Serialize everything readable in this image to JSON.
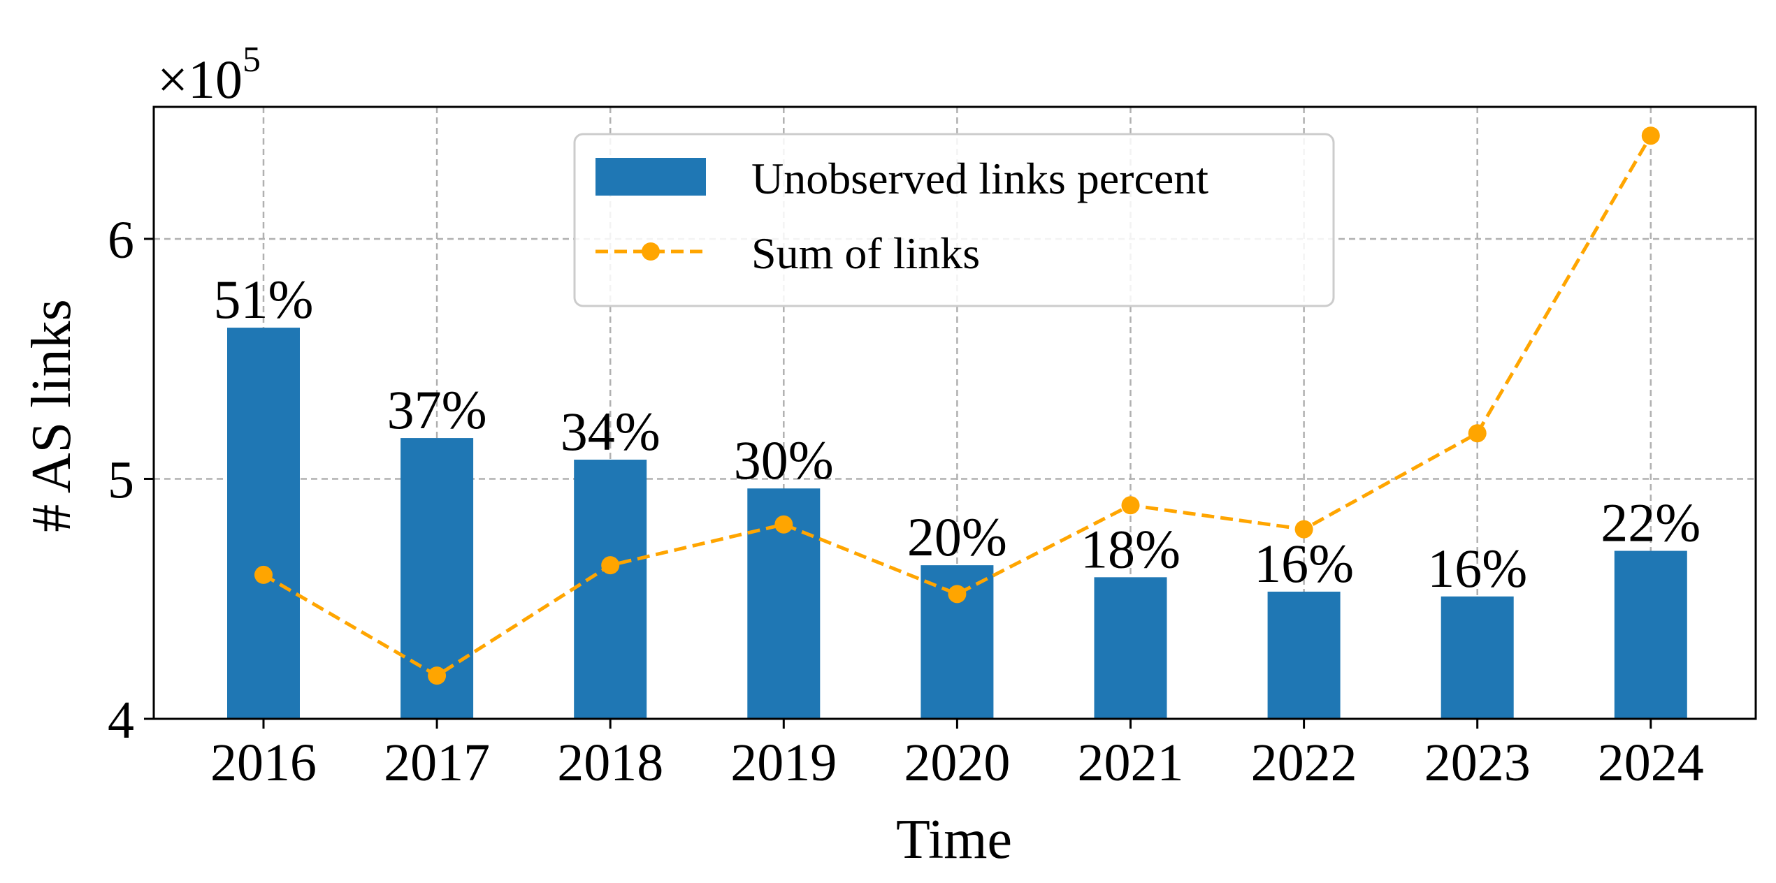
{
  "chart_data": {
    "type": "bar",
    "categories": [
      "2016",
      "2017",
      "2018",
      "2019",
      "2020",
      "2021",
      "2022",
      "2023",
      "2024"
    ],
    "series": [
      {
        "name": "Unobserved links percent",
        "type": "bar",
        "color": "#1f77b4",
        "values": [
          5.63,
          5.17,
          5.08,
          4.96,
          4.64,
          4.59,
          4.53,
          4.51,
          4.7
        ],
        "labels": [
          "51%",
          "37%",
          "34%",
          "30%",
          "20%",
          "18%",
          "16%",
          "16%",
          "22%"
        ]
      },
      {
        "name": "Sum of links",
        "type": "line",
        "color": "#ffa500",
        "line_style": "dashed",
        "marker": "circle",
        "values": [
          4.6,
          4.18,
          4.64,
          4.81,
          4.52,
          4.89,
          4.79,
          5.19,
          6.43
        ]
      }
    ],
    "xlabel": "Time",
    "ylabel": "# AS links",
    "y_offset_label": "×10",
    "y_offset_exponent": "5",
    "ylim": [
      4,
      6.55
    ],
    "yticks": [
      4,
      5,
      6
    ],
    "grid": true,
    "legend_position": "top-center"
  }
}
